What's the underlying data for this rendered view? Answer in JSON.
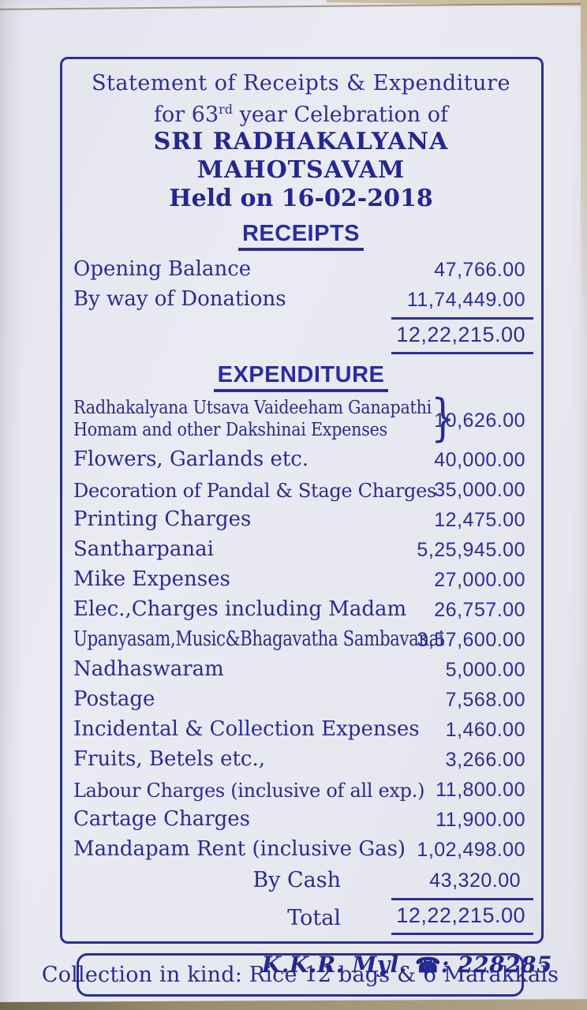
{
  "document": {
    "header": {
      "line1": "Statement of Receipts & Expenditure",
      "line2_pre": "for 63",
      "line2_sup": "rd",
      "line2_post": " year Celebration of",
      "line3": "SRI RADHAKALYANA MAHOTSAVAM",
      "line4": "Held on 16-02-2018"
    },
    "receipts": {
      "title": "RECEIPTS",
      "items": [
        {
          "label": "Opening Balance",
          "amount": "47,766.00"
        },
        {
          "label": "By way of Donations",
          "amount": "11,74,449.00"
        }
      ],
      "total_amount": "12,22,215.00"
    },
    "expenditure": {
      "title": "EXPENDITURE",
      "items": [
        {
          "label_lines": [
            "Radhakalyana Utsava Vaideeham Ganapathi",
            "Homam and other Dakshinai Expenses"
          ],
          "brace": "}",
          "amount": "10,626.00"
        },
        {
          "label": "Flowers, Garlands etc.",
          "amount": "40,000.00"
        },
        {
          "label": "Decoration of Pandal & Stage Charges",
          "amount": "35,000.00"
        },
        {
          "label": "Printing Charges",
          "amount": "12,475.00"
        },
        {
          "label": "Santharpanai",
          "amount": "5,25,945.00"
        },
        {
          "label": "Mike Expenses",
          "amount": "27,000.00"
        },
        {
          "label": "Elec.,Charges  including Madam",
          "amount": "26,757.00"
        },
        {
          "label": "Upanyasam,Music&Bhagavatha Sambavanai",
          "amount": "3,57,600.00"
        },
        {
          "label": "Nadhaswaram",
          "amount": "5,000.00"
        },
        {
          "label": "Postage",
          "amount": "7,568.00"
        },
        {
          "label": "Incidental & Collection Expenses",
          "amount": "1,460.00"
        },
        {
          "label": "Fruits, Betels etc.,",
          "amount": "3,266.00"
        },
        {
          "label": "Labour Charges (inclusive of all exp.)",
          "amount": "11,800.00"
        },
        {
          "label": "Cartage Charges",
          "amount": "11,900.00"
        },
        {
          "label": "Mandapam Rent (inclusive Gas)",
          "amount": "1,02,498.00"
        }
      ],
      "by_cash": {
        "label": "By Cash",
        "amount": "43,320.00"
      },
      "total": {
        "label": "Total",
        "amount": "12,22,215.00"
      }
    },
    "collection_note": "Collection in kind: Rice 12 bags & 6 Marakkals",
    "footer": {
      "pre": "K.K.R. Myl. ",
      "phone_icon": "☎",
      "post": ": 228285"
    }
  },
  "colors": {
    "ink": "#282c90",
    "border": "#2c2f93",
    "paper": "#e9e9f1",
    "background_tan": "#bfae92"
  }
}
